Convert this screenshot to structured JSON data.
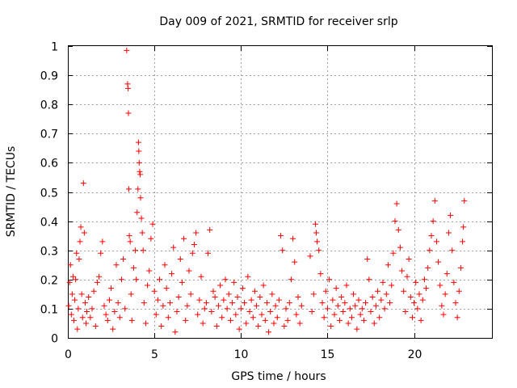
{
  "chart_data": {
    "type": "scatter",
    "title": "Day 009 of 2021, SRMTID for receiver srlp",
    "xlabel": "GPS time / hours",
    "ylabel": "SRMTID / TECUs",
    "xlim": [
      0,
      24.5
    ],
    "ylim": [
      0,
      1
    ],
    "x_ticks": [
      "0",
      "5",
      "10",
      "15",
      "20"
    ],
    "y_ticks": [
      "0",
      "0.1",
      "0.2",
      "0.3",
      "0.4",
      "0.5",
      "0.6",
      "0.7",
      "0.8",
      "0.9",
      "1"
    ],
    "grid": true,
    "marker": "plus",
    "series": [
      {
        "name": "SRMTID",
        "color": "#ff0000",
        "points": [
          [
            0.05,
            0.11
          ],
          [
            0.1,
            0.19
          ],
          [
            0.15,
            0.25
          ],
          [
            0.2,
            0.08
          ],
          [
            0.25,
            0.15
          ],
          [
            0.3,
            0.21
          ],
          [
            0.35,
            0.06
          ],
          [
            0.4,
            0.13
          ],
          [
            0.45,
            0.2
          ],
          [
            0.5,
            0.29
          ],
          [
            0.55,
            0.03
          ],
          [
            0.6,
            0.1
          ],
          [
            0.65,
            0.27
          ],
          [
            0.7,
            0.33
          ],
          [
            0.75,
            0.38
          ],
          [
            0.8,
            0.15
          ],
          [
            0.85,
            0.07
          ],
          [
            0.9,
            0.53
          ],
          [
            0.95,
            0.36
          ],
          [
            1.0,
            0.12
          ],
          [
            1.05,
            0.05
          ],
          [
            1.1,
            0.09
          ],
          [
            1.2,
            0.14
          ],
          [
            1.3,
            0.07
          ],
          [
            1.4,
            0.1
          ],
          [
            1.5,
            0.16
          ],
          [
            1.6,
            0.04
          ],
          [
            1.7,
            0.19
          ],
          [
            1.8,
            0.21
          ],
          [
            1.9,
            0.29
          ],
          [
            2.0,
            0.33
          ],
          [
            2.1,
            0.11
          ],
          [
            2.2,
            0.08
          ],
          [
            2.3,
            0.06
          ],
          [
            2.4,
            0.13
          ],
          [
            2.5,
            0.17
          ],
          [
            2.6,
            0.03
          ],
          [
            2.7,
            0.09
          ],
          [
            2.8,
            0.25
          ],
          [
            2.9,
            0.12
          ],
          [
            3.0,
            0.07
          ],
          [
            3.1,
            0.2
          ],
          [
            3.2,
            0.27
          ],
          [
            3.3,
            0.1
          ],
          [
            3.4,
            0.985
          ],
          [
            3.45,
            0.87
          ],
          [
            3.48,
            0.855
          ],
          [
            3.5,
            0.77
          ],
          [
            3.52,
            0.51
          ],
          [
            3.55,
            0.35
          ],
          [
            3.6,
            0.33
          ],
          [
            3.65,
            0.15
          ],
          [
            3.7,
            0.06
          ],
          [
            3.8,
            0.24
          ],
          [
            3.9,
            0.3
          ],
          [
            3.95,
            0.2
          ],
          [
            4.0,
            0.43
          ],
          [
            4.05,
            0.51
          ],
          [
            4.08,
            0.67
          ],
          [
            4.1,
            0.64
          ],
          [
            4.12,
            0.6
          ],
          [
            4.15,
            0.57
          ],
          [
            4.18,
            0.56
          ],
          [
            4.2,
            0.48
          ],
          [
            4.25,
            0.41
          ],
          [
            4.3,
            0.36
          ],
          [
            4.35,
            0.3
          ],
          [
            4.4,
            0.12
          ],
          [
            4.5,
            0.05
          ],
          [
            4.6,
            0.18
          ],
          [
            4.7,
            0.23
          ],
          [
            4.8,
            0.34
          ],
          [
            4.9,
            0.39
          ],
          [
            5.0,
            0.16
          ],
          [
            5.1,
            0.08
          ],
          [
            5.2,
            0.13
          ],
          [
            5.3,
            0.2
          ],
          [
            5.4,
            0.04
          ],
          [
            5.5,
            0.11
          ],
          [
            5.6,
            0.25
          ],
          [
            5.7,
            0.17
          ],
          [
            5.8,
            0.07
          ],
          [
            5.9,
            0.12
          ],
          [
            6.0,
            0.22
          ],
          [
            6.1,
            0.31
          ],
          [
            6.2,
            0.02
          ],
          [
            6.3,
            0.09
          ],
          [
            6.4,
            0.14
          ],
          [
            6.5,
            0.27
          ],
          [
            6.6,
            0.19
          ],
          [
            6.7,
            0.34
          ],
          [
            6.8,
            0.06
          ],
          [
            6.9,
            0.11
          ],
          [
            7.0,
            0.23
          ],
          [
            7.1,
            0.15
          ],
          [
            7.2,
            0.29
          ],
          [
            7.3,
            0.32
          ],
          [
            7.4,
            0.36
          ],
          [
            7.5,
            0.08
          ],
          [
            7.6,
            0.13
          ],
          [
            7.7,
            0.21
          ],
          [
            7.8,
            0.05
          ],
          [
            7.9,
            0.1
          ],
          [
            8.0,
            0.12
          ],
          [
            8.1,
            0.29
          ],
          [
            8.2,
            0.37
          ],
          [
            8.3,
            0.09
          ],
          [
            8.4,
            0.16
          ],
          [
            8.5,
            0.14
          ],
          [
            8.6,
            0.04
          ],
          [
            8.7,
            0.11
          ],
          [
            8.8,
            0.18
          ],
          [
            8.9,
            0.07
          ],
          [
            9.0,
            0.13
          ],
          [
            9.1,
            0.2
          ],
          [
            9.2,
            0.1
          ],
          [
            9.3,
            0.15
          ],
          [
            9.4,
            0.06
          ],
          [
            9.5,
            0.12
          ],
          [
            9.6,
            0.19
          ],
          [
            9.7,
            0.08
          ],
          [
            9.8,
            0.14
          ],
          [
            9.9,
            0.03
          ],
          [
            10.0,
            0.1
          ],
          [
            10.1,
            0.17
          ],
          [
            10.2,
            0.12
          ],
          [
            10.3,
            0.05
          ],
          [
            10.4,
            0.21
          ],
          [
            10.5,
            0.09
          ],
          [
            10.6,
            0.13
          ],
          [
            10.7,
            0.07
          ],
          [
            10.8,
            0.16
          ],
          [
            10.9,
            0.11
          ],
          [
            11.0,
            0.04
          ],
          [
            11.1,
            0.14
          ],
          [
            11.2,
            0.08
          ],
          [
            11.3,
            0.18
          ],
          [
            11.4,
            0.06
          ],
          [
            11.5,
            0.12
          ],
          [
            11.6,
            0.02
          ],
          [
            11.7,
            0.09
          ],
          [
            11.8,
            0.15
          ],
          [
            11.9,
            0.05
          ],
          [
            12.0,
            0.11
          ],
          [
            12.1,
            0.07
          ],
          [
            12.2,
            0.13
          ],
          [
            12.3,
            0.35
          ],
          [
            12.4,
            0.3
          ],
          [
            12.5,
            0.04
          ],
          [
            12.6,
            0.1
          ],
          [
            12.7,
            0.06
          ],
          [
            12.8,
            0.12
          ],
          [
            12.9,
            0.2
          ],
          [
            13.0,
            0.34
          ],
          [
            13.1,
            0.26
          ],
          [
            13.2,
            0.08
          ],
          [
            13.3,
            0.14
          ],
          [
            13.4,
            0.05
          ],
          [
            13.5,
            0.11
          ],
          [
            14.0,
            0.28
          ],
          [
            14.1,
            0.09
          ],
          [
            14.2,
            0.15
          ],
          [
            14.3,
            0.39
          ],
          [
            14.35,
            0.36
          ],
          [
            14.4,
            0.33
          ],
          [
            14.5,
            0.3
          ],
          [
            14.6,
            0.22
          ],
          [
            14.7,
            0.12
          ],
          [
            14.8,
            0.07
          ],
          [
            14.9,
            0.16
          ],
          [
            15.0,
            0.1
          ],
          [
            15.1,
            0.2
          ],
          [
            15.2,
            0.04
          ],
          [
            15.3,
            0.13
          ],
          [
            15.4,
            0.08
          ],
          [
            15.5,
            0.17
          ],
          [
            15.6,
            0.11
          ],
          [
            15.7,
            0.06
          ],
          [
            15.8,
            0.14
          ],
          [
            15.9,
            0.09
          ],
          [
            16.0,
            0.12
          ],
          [
            16.1,
            0.18
          ],
          [
            16.2,
            0.05
          ],
          [
            16.3,
            0.1
          ],
          [
            16.4,
            0.07
          ],
          [
            16.5,
            0.15
          ],
          [
            16.6,
            0.11
          ],
          [
            16.7,
            0.03
          ],
          [
            16.8,
            0.13
          ],
          [
            16.9,
            0.08
          ],
          [
            17.0,
            0.1
          ],
          [
            17.1,
            0.06
          ],
          [
            17.2,
            0.12
          ],
          [
            17.3,
            0.27
          ],
          [
            17.4,
            0.2
          ],
          [
            17.5,
            0.09
          ],
          [
            17.6,
            0.14
          ],
          [
            17.7,
            0.05
          ],
          [
            17.8,
            0.11
          ],
          [
            17.9,
            0.16
          ],
          [
            18.0,
            0.07
          ],
          [
            18.1,
            0.13
          ],
          [
            18.2,
            0.19
          ],
          [
            18.3,
            0.1
          ],
          [
            18.4,
            0.15
          ],
          [
            18.5,
            0.25
          ],
          [
            18.6,
            0.12
          ],
          [
            18.7,
            0.18
          ],
          [
            18.8,
            0.29
          ],
          [
            18.9,
            0.4
          ],
          [
            19.0,
            0.46
          ],
          [
            19.1,
            0.37
          ],
          [
            19.2,
            0.31
          ],
          [
            19.3,
            0.23
          ],
          [
            19.4,
            0.16
          ],
          [
            19.5,
            0.09
          ],
          [
            19.6,
            0.21
          ],
          [
            19.7,
            0.27
          ],
          [
            19.8,
            0.14
          ],
          [
            19.9,
            0.07
          ],
          [
            20.0,
            0.12
          ],
          [
            20.1,
            0.19
          ],
          [
            20.2,
            0.1
          ],
          [
            20.3,
            0.15
          ],
          [
            20.4,
            0.06
          ],
          [
            20.5,
            0.13
          ],
          [
            20.6,
            0.2
          ],
          [
            20.7,
            0.17
          ],
          [
            20.8,
            0.24
          ],
          [
            20.9,
            0.3
          ],
          [
            21.0,
            0.35
          ],
          [
            21.1,
            0.4
          ],
          [
            21.2,
            0.47
          ],
          [
            21.3,
            0.33
          ],
          [
            21.4,
            0.26
          ],
          [
            21.5,
            0.18
          ],
          [
            21.6,
            0.11
          ],
          [
            21.7,
            0.08
          ],
          [
            21.8,
            0.15
          ],
          [
            21.9,
            0.22
          ],
          [
            22.0,
            0.36
          ],
          [
            22.1,
            0.42
          ],
          [
            22.2,
            0.3
          ],
          [
            22.3,
            0.19
          ],
          [
            22.4,
            0.12
          ],
          [
            22.5,
            0.07
          ],
          [
            22.6,
            0.16
          ],
          [
            22.7,
            0.24
          ],
          [
            22.8,
            0.33
          ],
          [
            22.85,
            0.38
          ],
          [
            22.9,
            0.47
          ]
        ]
      }
    ]
  }
}
